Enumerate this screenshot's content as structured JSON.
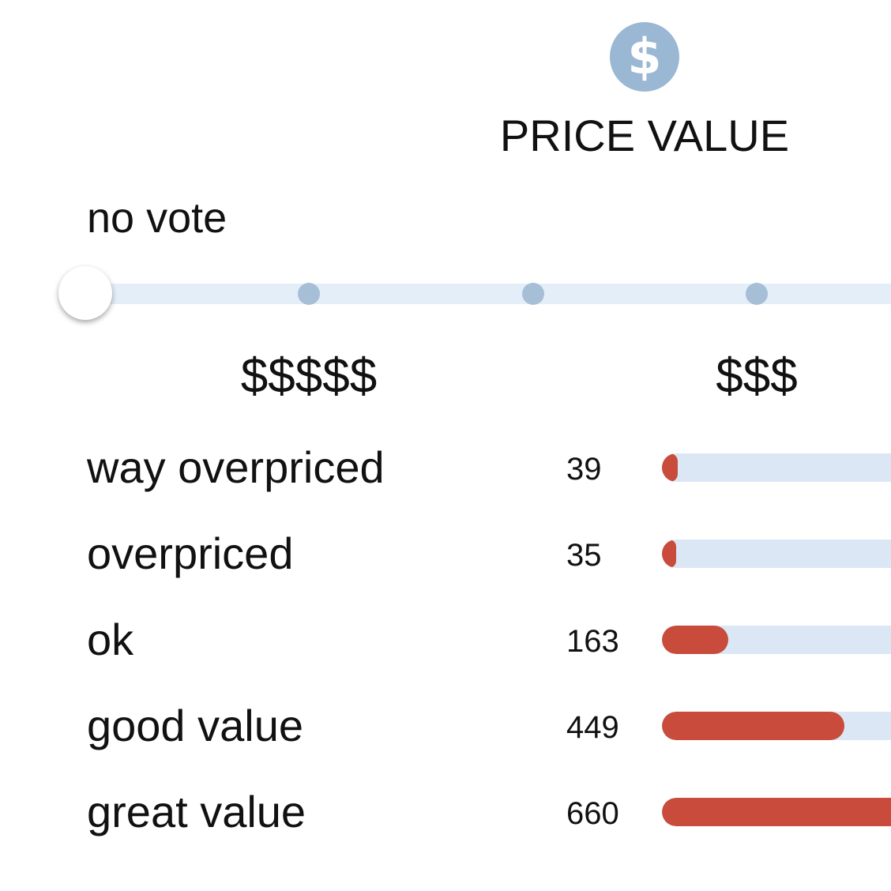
{
  "header": {
    "icon": "dollar-sign-icon",
    "icon_glyph": "$",
    "icon_color": "#9ab7d3",
    "title": "PRICE VALUE"
  },
  "vote": {
    "status": "no vote",
    "options": [
      "$$$$$",
      "$$$$",
      "$$$",
      "$$",
      "$"
    ],
    "selected_index": 0,
    "visible_stop_labels": [
      {
        "stop_index": 1,
        "label": "$$$$$"
      },
      {
        "stop_index": 3,
        "label": "$$$"
      }
    ]
  },
  "colors": {
    "track": "#e3eef8",
    "stop": "#a6bfd6",
    "bar_fill": "#c84b3b",
    "bar_track": "#dbe7f4"
  },
  "ratings": {
    "max_count": 660,
    "rows": [
      {
        "label": "way overpriced",
        "count": "39"
      },
      {
        "label": "overpriced",
        "count": "35"
      },
      {
        "label": "ok",
        "count": "163"
      },
      {
        "label": "good value",
        "count": "449"
      },
      {
        "label": "great value",
        "count": "660"
      }
    ]
  }
}
